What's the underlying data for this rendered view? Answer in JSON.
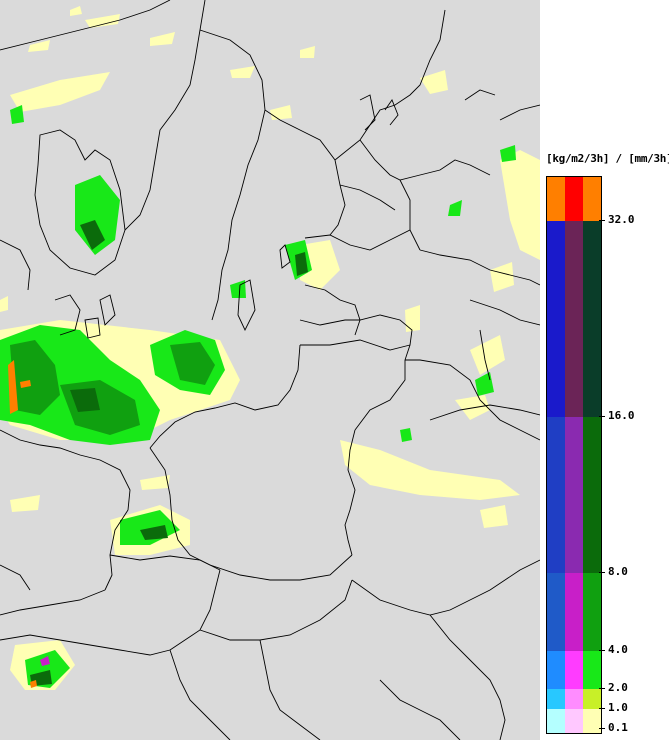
{
  "legend": {
    "title": "[kg/m2/3h] / [mm/3h]",
    "labels": [
      "32.0",
      "16.0",
      "8.0",
      "4.0",
      "2.0",
      "1.0",
      "0.1"
    ],
    "bands": [
      {
        "colors": [
          "#ff7f00",
          "#ff0000",
          "#ff7f00"
        ]
      },
      {
        "colors": [
          "#1a1acb",
          "#6b2457",
          "#0a3d29"
        ]
      },
      {
        "colors": [
          "#1f3ec4",
          "#8a2ab0",
          "#0b6b0b"
        ]
      },
      {
        "colors": [
          "#1f5ac8",
          "#c81fc8",
          "#10a010"
        ]
      },
      {
        "colors": [
          "#1f8cff",
          "#ff3cff",
          "#18e818"
        ]
      },
      {
        "colors": [
          "#28c8ff",
          "#ff8cff",
          "#c8f028"
        ]
      },
      {
        "colors": [
          "#b4ffff",
          "#ffc8ff",
          "#ffffb4"
        ]
      }
    ]
  },
  "map": {
    "background": "#dadada",
    "border_color": "#000000",
    "colors": {
      "light": "#ffffb4",
      "green_light": "#18e818",
      "green": "#10a010",
      "green_dark": "#0b6b0b",
      "orange": "#ff7f00",
      "magenta": "#c81fc8"
    }
  }
}
